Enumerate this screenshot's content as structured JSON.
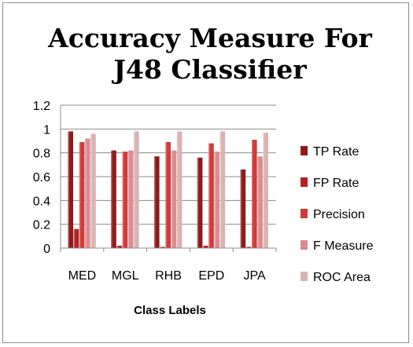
{
  "chart_data": {
    "type": "bar",
    "title_lines": [
      "Accuracy Measure For",
      "J48 Classifier"
    ],
    "xlabel": "Class Labels",
    "ylabel": "",
    "ylim": [
      0,
      1.2
    ],
    "yticks": [
      "0",
      "0.2",
      "0.4",
      "0.6",
      "0.8",
      "1",
      "1.2"
    ],
    "grid": true,
    "legend_position": "right",
    "categories": [
      "MED",
      "MGL",
      "RHB",
      "EPD",
      "JPA"
    ],
    "series": [
      {
        "name": "TP Rate",
        "color": "#8e1b1b",
        "values": [
          0.98,
          0.82,
          0.77,
          0.76,
          0.66
        ]
      },
      {
        "name": "FP Rate",
        "color": "#b22222",
        "values": [
          0.16,
          0.02,
          0.01,
          0.02,
          0.01
        ]
      },
      {
        "name": "Precision",
        "color": "#d03a3a",
        "values": [
          0.89,
          0.81,
          0.89,
          0.88,
          0.91
        ]
      },
      {
        "name": "F Measure",
        "color": "#d98d8d",
        "values": [
          0.92,
          0.82,
          0.82,
          0.81,
          0.77
        ]
      },
      {
        "name": "ROC Area",
        "color": "#d9b3b3",
        "values": [
          0.96,
          0.98,
          0.98,
          0.98,
          0.97
        ]
      }
    ]
  }
}
